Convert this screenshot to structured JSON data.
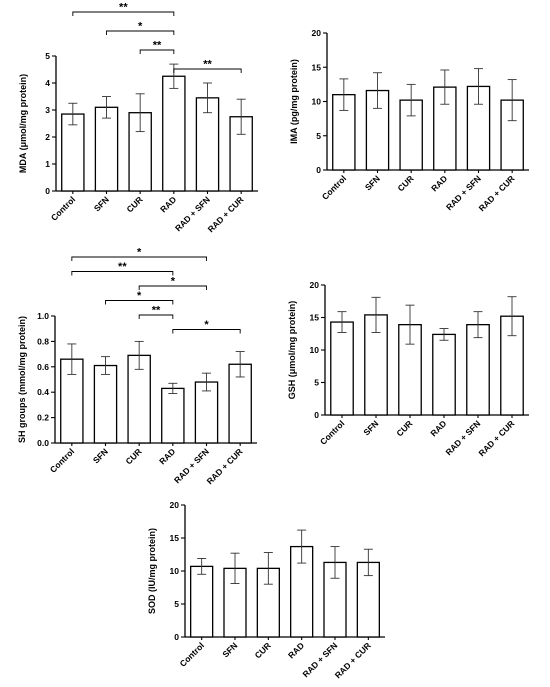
{
  "chart_data": [
    {
      "type": "bar",
      "ylabel": "MDA (μmol/mg protein)",
      "categories": [
        "Control",
        "SFN",
        "CUR",
        "RAD",
        "RAD + SFN",
        "RAD + CUR"
      ],
      "values": [
        2.85,
        3.1,
        2.9,
        4.25,
        3.45,
        2.75
      ],
      "errors": [
        0.4,
        0.4,
        0.7,
        0.45,
        0.55,
        0.65
      ],
      "ylim": [
        0,
        5
      ],
      "yticks": [
        0,
        1,
        2,
        3,
        4,
        5
      ],
      "significance": [
        {
          "from": 0,
          "to": 3,
          "label": "**"
        },
        {
          "from": 1,
          "to": 3,
          "label": "*"
        },
        {
          "from": 2,
          "to": 3,
          "label": "**"
        },
        {
          "from": 3,
          "to": 5,
          "label": "**"
        }
      ]
    },
    {
      "type": "bar",
      "ylabel": "IMA (pg/mg protein)",
      "categories": [
        "Control",
        "SFN",
        "CUR",
        "RAD",
        "RAD + SFN",
        "RAD + CUR"
      ],
      "values": [
        11.0,
        11.6,
        10.2,
        12.1,
        12.2,
        10.2
      ],
      "errors": [
        2.3,
        2.6,
        2.3,
        2.5,
        2.6,
        3.0
      ],
      "ylim": [
        0,
        20
      ],
      "yticks": [
        0,
        5,
        10,
        15,
        20
      ],
      "significance": []
    },
    {
      "type": "bar",
      "ylabel": "SH groups (mmol/mg protein)",
      "categories": [
        "Control",
        "SFN",
        "CUR",
        "RAD",
        "RAD + SFN",
        "RAD + CUR"
      ],
      "values": [
        0.66,
        0.61,
        0.69,
        0.43,
        0.48,
        0.62
      ],
      "errors": [
        0.12,
        0.07,
        0.11,
        0.04,
        0.07,
        0.1
      ],
      "ylim": [
        0,
        1.0
      ],
      "yticks": [
        0.0,
        0.2,
        0.4,
        0.6,
        0.8,
        1.0
      ],
      "significance": [
        {
          "from": 0,
          "to": 4,
          "label": "*"
        },
        {
          "from": 0,
          "to": 3,
          "label": "**"
        },
        {
          "from": 2,
          "to": 4,
          "label": "*"
        },
        {
          "from": 1,
          "to": 3,
          "label": "*"
        },
        {
          "from": 2,
          "to": 3,
          "label": "**"
        },
        {
          "from": 3,
          "to": 5,
          "label": "*"
        }
      ]
    },
    {
      "type": "bar",
      "ylabel": "GSH (μmol/mg protein)",
      "categories": [
        "Control",
        "SFN",
        "CUR",
        "RAD",
        "RAD + SFN",
        "RAD + CUR"
      ],
      "values": [
        14.3,
        15.4,
        13.9,
        12.4,
        13.9,
        15.2
      ],
      "errors": [
        1.6,
        2.7,
        3.0,
        0.9,
        2.0,
        3.0
      ],
      "ylim": [
        0,
        20
      ],
      "yticks": [
        0,
        5,
        10,
        15,
        20
      ],
      "significance": []
    },
    {
      "type": "bar",
      "ylabel": "SOD (IU/mg protein)",
      "categories": [
        "Control",
        "SFN",
        "CUR",
        "RAD",
        "RAD + SFN",
        "RAD + CUR"
      ],
      "values": [
        10.7,
        10.4,
        10.4,
        13.7,
        11.3,
        11.3
      ],
      "errors": [
        1.2,
        2.3,
        2.4,
        2.5,
        2.4,
        2.0
      ],
      "ylim": [
        0,
        20
      ],
      "yticks": [
        0,
        5,
        10,
        15,
        20
      ],
      "significance": []
    }
  ]
}
